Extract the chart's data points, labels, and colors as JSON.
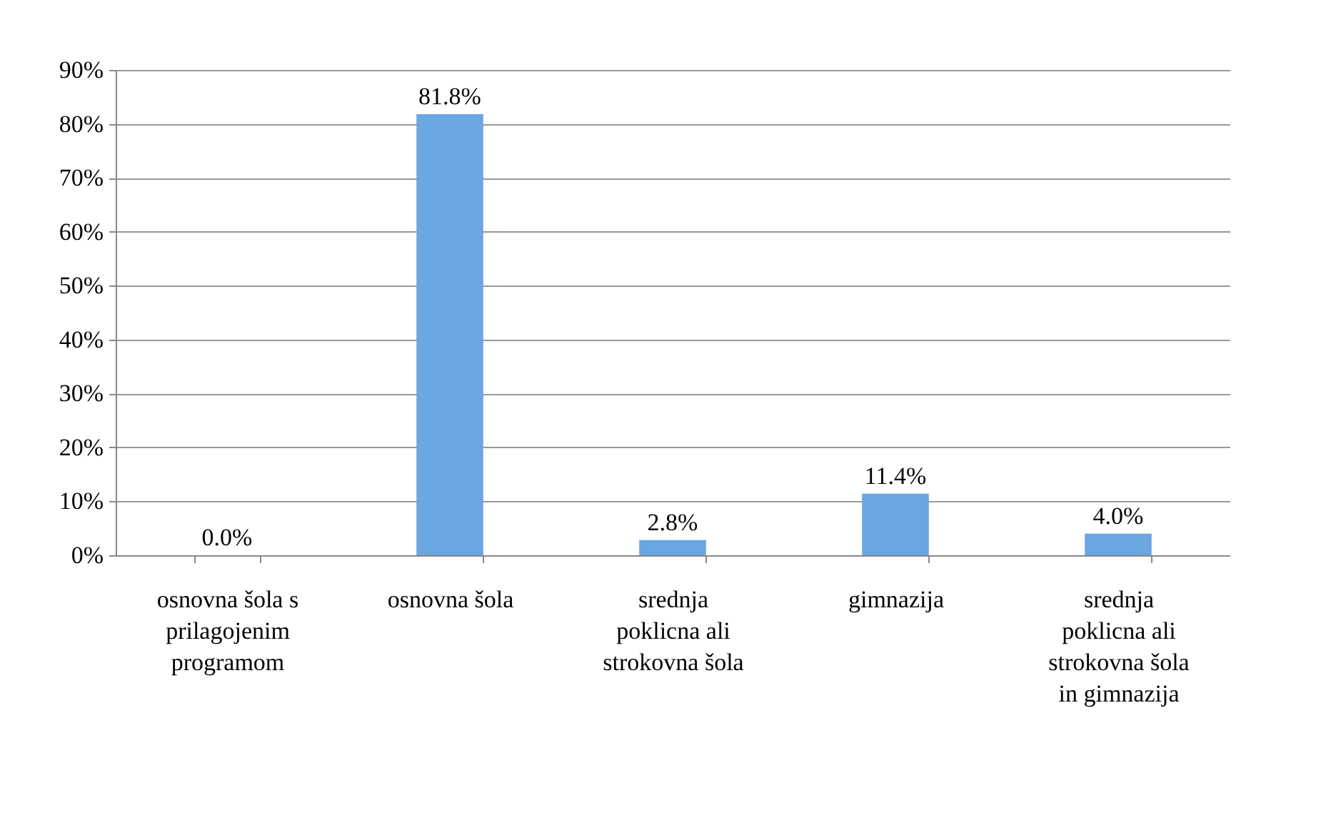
{
  "chart_data": {
    "type": "bar",
    "categories": [
      "osnovna šola s prilagojenim programom",
      "osnovna šola",
      "srednja poklicna ali strokovna šola",
      "gimnazija",
      "srednja poklicna ali strokovna šola in gimnazija"
    ],
    "values": [
      0.0,
      81.8,
      2.8,
      11.4,
      4.0
    ],
    "value_labels": [
      "0.0%",
      "81.8%",
      "2.8%",
      "11.4%",
      "4.0%"
    ],
    "color": "#6aa6e2",
    "ylim": [
      0,
      90
    ],
    "yticks": [
      {
        "value": 0,
        "label": "0%"
      },
      {
        "value": 10,
        "label": "10%"
      },
      {
        "value": 20,
        "label": "20%"
      },
      {
        "value": 30,
        "label": "30%"
      },
      {
        "value": 40,
        "label": "40%"
      },
      {
        "value": 50,
        "label": "50%"
      },
      {
        "value": 60,
        "label": "60%"
      },
      {
        "value": 70,
        "label": "70%"
      },
      {
        "value": 80,
        "label": "80%"
      },
      {
        "value": 90,
        "label": "90%"
      }
    ],
    "grid": "y"
  }
}
